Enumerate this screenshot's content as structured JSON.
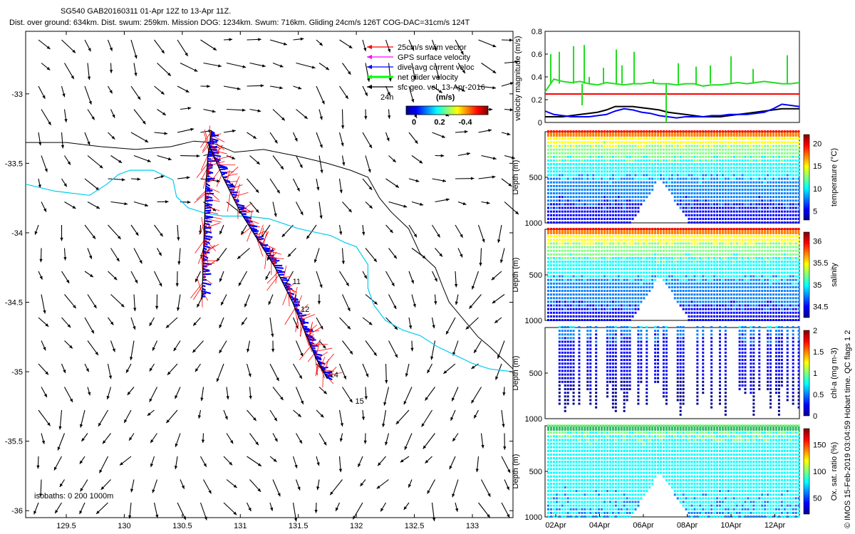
{
  "header": {
    "line1": "SG540 GAB20160311 01-Apr 12Z to 13-Apr 11Z.",
    "line2": "Dist. over ground: 634km. Dist. swum: 259km. Mission DOG: 1234km. Swum: 716km. Gliding 24cm/s 126T COG-DAC=31cm/s 124T"
  },
  "footer": {
    "vertical_note": "© IMOS 15-Feb-2019 03:04:59 Hobart time. QC flags 1  2"
  },
  "chart_data": [
    {
      "type": "scatter",
      "id": "track-map",
      "x_ticks": [
        129.5,
        130,
        130.5,
        131,
        131.5,
        132,
        132.5,
        133
      ],
      "y_ticks": [
        -33,
        -33.5,
        -34,
        -34.5,
        -35,
        -35.5,
        -36
      ],
      "xlim": [
        129.15,
        133.35
      ],
      "ylim": [
        -36.05,
        -32.55
      ],
      "legend": [
        {
          "label": "25cm/s swim vector",
          "color": "#ff0000"
        },
        {
          "label": "GPS surface velocity",
          "color": "#ff00ff"
        },
        {
          "label": "dive-avg current veloc",
          "color": "#0000ff"
        },
        {
          "label": "net glider velocity",
          "color": "#00ff00"
        },
        {
          "label": "sfc geo. vel. 13-Apr-2016",
          "color": "#000000"
        }
      ],
      "scale_label": "24h",
      "colorbar": {
        "label": "(m/s)",
        "ticks": [
          "0",
          "0.2",
          "-0.4"
        ]
      },
      "isobath_note": "isobaths: 0   200  1000m",
      "day_labels": [
        {
          "text": "11",
          "lon": 131.45,
          "lat": -34.37
        },
        {
          "text": "12",
          "lon": 131.52,
          "lat": -34.57
        },
        {
          "text": "14",
          "lon": 131.77,
          "lat": -35.04
        },
        {
          "text": "15",
          "lon": 131.99,
          "lat": -35.23
        }
      ],
      "track_west": [
        [
          130.75,
          -33.27
        ],
        [
          130.72,
          -33.45
        ],
        [
          130.7,
          -33.7
        ],
        [
          130.69,
          -33.95
        ],
        [
          130.68,
          -34.2
        ],
        [
          130.67,
          -34.48
        ]
      ],
      "track_east": [
        [
          130.72,
          -33.35
        ],
        [
          130.85,
          -33.6
        ],
        [
          131.0,
          -33.85
        ],
        [
          131.15,
          -34.05
        ],
        [
          131.3,
          -34.25
        ],
        [
          131.45,
          -34.5
        ],
        [
          131.55,
          -34.7
        ],
        [
          131.65,
          -34.9
        ],
        [
          131.75,
          -35.05
        ]
      ],
      "isobath_200": [
        [
          129.15,
          -33.35
        ],
        [
          129.5,
          -33.35
        ],
        [
          129.8,
          -33.38
        ],
        [
          130.1,
          -33.4
        ],
        [
          130.4,
          -33.38
        ],
        [
          130.6,
          -33.34
        ],
        [
          130.75,
          -33.35
        ],
        [
          130.95,
          -33.42
        ],
        [
          131.2,
          -33.4
        ],
        [
          131.5,
          -33.45
        ],
        [
          131.75,
          -33.5
        ],
        [
          131.95,
          -33.55
        ],
        [
          132.1,
          -33.6
        ],
        [
          132.2,
          -33.75
        ],
        [
          132.3,
          -33.85
        ],
        [
          132.45,
          -33.97
        ],
        [
          132.55,
          -34.15
        ],
        [
          132.68,
          -34.25
        ],
        [
          132.75,
          -34.4
        ],
        [
          132.8,
          -34.5
        ],
        [
          132.95,
          -34.65
        ],
        [
          133.05,
          -34.75
        ],
        [
          133.15,
          -34.82
        ],
        [
          133.35,
          -34.98
        ]
      ],
      "isobath_1000": [
        [
          129.15,
          -33.65
        ],
        [
          129.4,
          -33.7
        ],
        [
          129.7,
          -33.73
        ],
        [
          129.85,
          -33.65
        ],
        [
          129.95,
          -33.58
        ],
        [
          130.05,
          -33.55
        ],
        [
          130.25,
          -33.55
        ],
        [
          130.42,
          -33.62
        ],
        [
          130.45,
          -33.74
        ],
        [
          130.55,
          -33.82
        ],
        [
          130.7,
          -33.86
        ],
        [
          130.85,
          -33.88
        ],
        [
          131.05,
          -33.88
        ],
        [
          131.25,
          -33.9
        ],
        [
          131.5,
          -33.97
        ],
        [
          131.78,
          -34.02
        ],
        [
          131.9,
          -34.07
        ],
        [
          132.0,
          -34.1
        ],
        [
          132.1,
          -34.23
        ],
        [
          132.1,
          -34.4
        ],
        [
          132.15,
          -34.52
        ],
        [
          132.25,
          -34.63
        ],
        [
          132.4,
          -34.7
        ],
        [
          132.55,
          -34.74
        ],
        [
          132.7,
          -34.82
        ],
        [
          132.85,
          -34.88
        ],
        [
          133.0,
          -34.94
        ],
        [
          133.15,
          -34.98
        ],
        [
          133.35,
          -35.0
        ]
      ]
    },
    {
      "type": "line",
      "id": "velocity-timeseries",
      "ylabel": "velocity magnitude (m/s)",
      "ylim": [
        0,
        0.8
      ],
      "yticks": [
        0,
        0.2,
        0.4,
        0.6,
        0.8
      ],
      "series": [
        {
          "color": "#22dd22",
          "values": [
            0.27,
            0.38,
            0.36,
            0.35,
            0.36,
            0.34,
            0.33,
            0.35,
            0.34,
            0.33,
            0.34,
            0.34,
            0.35,
            0.34,
            0.34,
            0.33,
            0.34,
            0.34,
            0.32,
            0.33,
            0.33,
            0.34,
            0.35,
            0.34,
            0.35,
            0.36,
            0.35,
            0.34,
            0.34,
            0.35
          ]
        },
        {
          "color": "#ff0000",
          "values": [
            0.25,
            0.25,
            0.25,
            0.25,
            0.25,
            0.25,
            0.25,
            0.25,
            0.25,
            0.25,
            0.25,
            0.25,
            0.25,
            0.25,
            0.25,
            0.25,
            0.25,
            0.25,
            0.25,
            0.25,
            0.25,
            0.25,
            0.25,
            0.25,
            0.25,
            0.25,
            0.25,
            0.25,
            0.25,
            0.25
          ]
        },
        {
          "color": "#000000",
          "values": [
            0.05,
            0.05,
            0.05,
            0.06,
            0.07,
            0.08,
            0.09,
            0.11,
            0.14,
            0.14,
            0.14,
            0.13,
            0.12,
            0.11,
            0.09,
            0.08,
            0.07,
            0.06,
            0.05,
            0.05,
            0.05,
            0.06,
            0.07,
            0.08,
            0.09,
            0.1,
            0.11,
            0.12,
            0.12,
            0.12
          ]
        },
        {
          "color": "#0000ff",
          "values": [
            0.1,
            0.07,
            0.06,
            0.05,
            0.05,
            0.05,
            0.06,
            0.07,
            0.1,
            0.12,
            0.11,
            0.09,
            0.08,
            0.06,
            0.05,
            0.04,
            0.05,
            0.05,
            0.05,
            0.06,
            0.06,
            0.07,
            0.07,
            0.07,
            0.08,
            0.09,
            0.12,
            0.16,
            0.15,
            0.14
          ]
        }
      ]
    },
    {
      "type": "heatmap",
      "id": "temperature-section",
      "ylabel": "Depth (m)",
      "cbar_label": "temperature (°C)",
      "cbar_ticks": [
        "20",
        "15",
        "10",
        "5"
      ],
      "cbar_range": [
        3,
        22
      ],
      "depth_ticks": [
        500,
        1000
      ],
      "surface_value": 20,
      "deep_value": 5
    },
    {
      "type": "heatmap",
      "id": "salinity-section",
      "ylabel": "Depth (m)",
      "cbar_label": "salinity",
      "cbar_ticks": [
        "36",
        "35.5",
        "35",
        "34.5"
      ],
      "cbar_range": [
        34.25,
        36.2
      ],
      "depth_ticks": [
        500,
        1000
      ],
      "surface_value": 36,
      "deep_value": 34.5
    },
    {
      "type": "heatmap",
      "id": "chla-section",
      "ylabel": "Depth (m)",
      "cbar_label": "chl-a (mg m-3)",
      "cbar_ticks": [
        "2",
        "1.5",
        "1",
        "0.5",
        "0"
      ],
      "cbar_range": [
        0,
        2
      ],
      "depth_ticks": [
        500,
        1000
      ],
      "surface_value": 0.6,
      "deep_value": 0
    },
    {
      "type": "heatmap",
      "id": "oxygen-section",
      "ylabel": "Depth (m)",
      "cbar_label": "Ox. sat. ratio (%)",
      "cbar_ticks": [
        "150",
        "100",
        "50"
      ],
      "cbar_range": [
        20,
        180
      ],
      "depth_ticks": [
        500,
        1000
      ],
      "surface_value": 100,
      "deep_value": 70,
      "x_ticks": [
        "02Apr",
        "04Apr",
        "06Apr",
        "08Apr",
        "10Apr",
        "12Apr"
      ]
    }
  ],
  "colors": {
    "swim": "#ff0000",
    "current": "#0000ff",
    "isobath_1000": "#00ccee",
    "isobath_200": "#000000"
  }
}
